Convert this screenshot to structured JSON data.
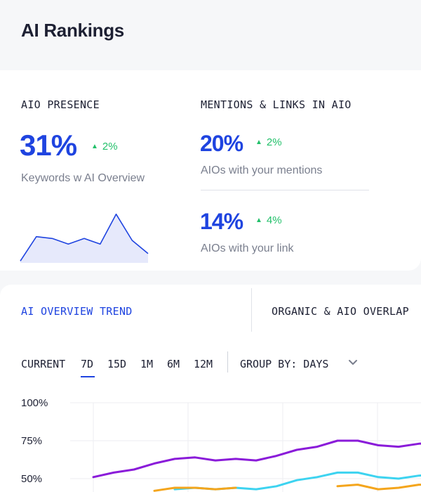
{
  "page": {
    "title": "AI Rankings"
  },
  "aio_presence": {
    "label": "AIO PRESENCE",
    "value": "31%",
    "delta": "2%",
    "subtext": "Keywords  w AI Overview",
    "sparkline": [
      2,
      28,
      26,
      20,
      26,
      20,
      52,
      24,
      10
    ]
  },
  "mentions_links": {
    "label": "MENTIONS & LINKS IN AIO",
    "mentions": {
      "value": "20%",
      "delta": "2%",
      "subtext": "AIOs with your mentions"
    },
    "links": {
      "value": "14%",
      "delta": "4%",
      "subtext": "AIOs with your link"
    }
  },
  "tabs": [
    {
      "label": "AI OVERVIEW TREND",
      "active": true
    },
    {
      "label": "ORGANIC & AIO OVERLAP",
      "active": false
    }
  ],
  "filters": {
    "ranges": [
      "CURRENT",
      "7D",
      "15D",
      "1M",
      "6M",
      "12M"
    ],
    "selected_range": "7D",
    "group_by": "GROUP BY: DAYS"
  },
  "colors": {
    "accent": "#1f44e0",
    "positive": "#22c06a",
    "series_purple": "#8a1bd9",
    "series_cyan": "#3dd3f0",
    "series_orange": "#f4a51c"
  },
  "chart_data": {
    "type": "line",
    "y_ticks": [
      "100%",
      "75%",
      "50%"
    ],
    "ylim": [
      0,
      100
    ],
    "series": [
      {
        "color": "#8a1bd9",
        "values": [
          51,
          54,
          56,
          60,
          63,
          64,
          62,
          63,
          62,
          65,
          69,
          71,
          75,
          75,
          72,
          71,
          73,
          74
        ]
      },
      {
        "color": "#3dd3f0",
        "values": [
          null,
          null,
          null,
          null,
          43,
          44,
          43,
          44,
          43,
          45,
          49,
          51,
          54,
          54,
          51,
          50,
          52,
          53
        ]
      },
      {
        "color": "#f4a51c",
        "values": [
          null,
          null,
          null,
          42,
          44,
          44,
          43,
          44,
          null,
          null,
          null,
          null,
          45,
          46,
          43,
          44,
          46,
          46
        ]
      }
    ]
  }
}
